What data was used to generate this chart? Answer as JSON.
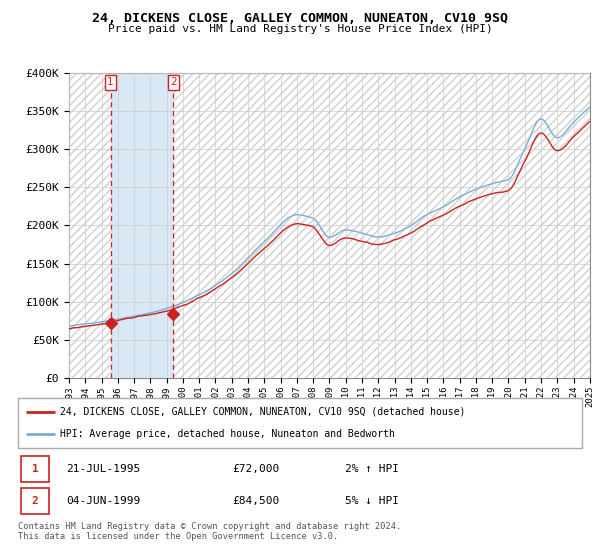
{
  "title": "24, DICKENS CLOSE, GALLEY COMMON, NUNEATON, CV10 9SQ",
  "subtitle": "Price paid vs. HM Land Registry's House Price Index (HPI)",
  "ylim": [
    0,
    400000
  ],
  "yticks": [
    0,
    50000,
    100000,
    150000,
    200000,
    250000,
    300000,
    350000,
    400000
  ],
  "ytick_labels": [
    "£0",
    "£50K",
    "£100K",
    "£150K",
    "£200K",
    "£250K",
    "£300K",
    "£350K",
    "£400K"
  ],
  "hpi_color": "#7aadd4",
  "sale_color": "#cc2222",
  "dashed_color": "#cc2222",
  "shade_color": "#d8e8f5",
  "background_color": "#ffffff",
  "grid_color": "#cccccc",
  "hatch_color": "#d0d0d0",
  "legend_label_sale": "24, DICKENS CLOSE, GALLEY COMMON, NUNEATON, CV10 9SQ (detached house)",
  "legend_label_hpi": "HPI: Average price, detached house, Nuneaton and Bedworth",
  "sale1_date": 1995.55,
  "sale1_price": 72000,
  "sale2_date": 1999.42,
  "sale2_price": 84500,
  "footer": "Contains HM Land Registry data © Crown copyright and database right 2024.\nThis data is licensed under the Open Government Licence v3.0.",
  "table_rows": [
    {
      "num": "1",
      "date": "21-JUL-1995",
      "price": "£72,000",
      "hpi": "2% ↑ HPI"
    },
    {
      "num": "2",
      "date": "04-JUN-1999",
      "price": "£84,500",
      "hpi": "5% ↓ HPI"
    }
  ],
  "xmin": 1993,
  "xmax": 2025
}
